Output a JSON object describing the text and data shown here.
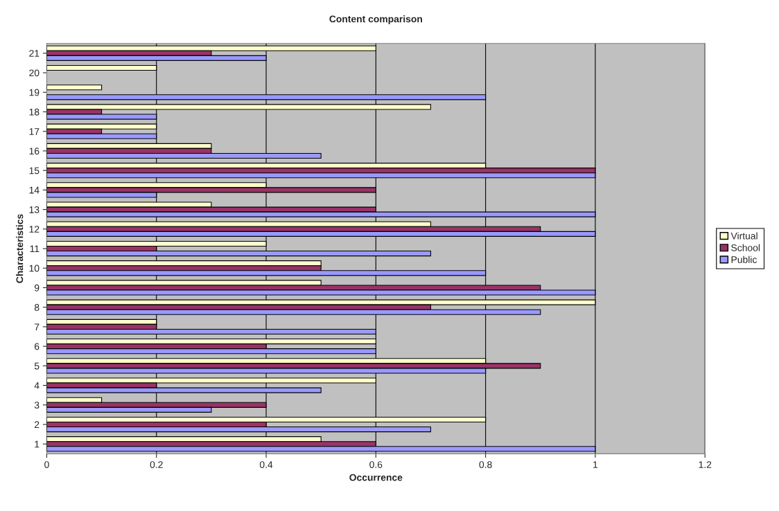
{
  "chart_data": {
    "type": "bar",
    "orientation": "horizontal",
    "title": "Content comparison",
    "xlabel": "Occurrence",
    "ylabel": "Characteristics",
    "categories": [
      "21",
      "20",
      "19",
      "18",
      "17",
      "16",
      "15",
      "14",
      "13",
      "12",
      "11",
      "10",
      "9",
      "8",
      "7",
      "6",
      "5",
      "4",
      "3",
      "2",
      "1"
    ],
    "series": [
      {
        "name": "Virtual",
        "color": "#ffffcc",
        "values": [
          0.6,
          0.2,
          0.1,
          0.7,
          0.2,
          0.3,
          0.8,
          0.4,
          0.3,
          0.7,
          0.4,
          0.5,
          0.5,
          1.0,
          0.2,
          0.6,
          0.8,
          0.6,
          0.1,
          0.8,
          0.5
        ]
      },
      {
        "name": "School",
        "color": "#993366",
        "values": [
          0.3,
          0,
          0,
          0.1,
          0.1,
          0.3,
          1.0,
          0.6,
          0.6,
          0.9,
          0.2,
          0.5,
          0.9,
          0.7,
          0.2,
          0.4,
          0.9,
          0.2,
          0.4,
          0.4,
          0.6
        ]
      },
      {
        "name": "Public",
        "color": "#9999ff",
        "values": [
          0.4,
          0,
          0.8,
          0.2,
          0.2,
          0.5,
          1.0,
          0.2,
          1.0,
          1.0,
          0.7,
          0.8,
          1.0,
          0.9,
          0.6,
          0.6,
          0.8,
          0.5,
          0.3,
          0.7,
          1.0
        ]
      }
    ],
    "xlim": [
      0,
      1.2
    ],
    "xticks": [
      0,
      0.2,
      0.4,
      0.6,
      0.8,
      1,
      1.2
    ],
    "grid": "x",
    "legend": "right"
  }
}
